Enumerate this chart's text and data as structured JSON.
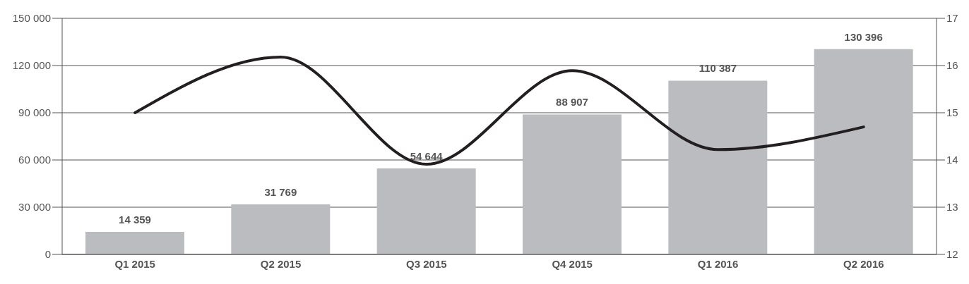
{
  "chart_data": {
    "type": "bar",
    "categories": [
      "Q1 2015",
      "Q2 2015",
      "Q3 2015",
      "Q4 2015",
      "Q1 2016",
      "Q2 2016"
    ],
    "series": [
      {
        "color": "#bbbcc0",
        "values": [
          14359,
          31769,
          54644,
          88907,
          110387,
          130396
        ],
        "value_labels": [
          "14 359",
          "31 769",
          "54 644",
          "88 907",
          "110 387",
          "130 396"
        ]
      },
      {
        "type": "line",
        "axis": "y2",
        "color": "#231f20",
        "values": [
          15.0,
          16.18,
          13.91,
          15.89,
          14.22,
          14.7
        ]
      }
    ],
    "ylim": [
      0,
      150000
    ],
    "yticks": [
      0,
      {
        "value": 30000,
        "label": "30 000"
      },
      {
        "value": 60000,
        "label": "60 000"
      },
      {
        "value": 90000,
        "label": "90 000"
      },
      {
        "value": 120000,
        "label": "120 000"
      },
      {
        "value": 150000,
        "label": "150 000"
      }
    ],
    "y2lim": [
      12,
      17
    ],
    "y2ticks": [
      12,
      13,
      14,
      15,
      16,
      17
    ],
    "grid": "y",
    "marker": "none",
    "line_style": "solid"
  }
}
